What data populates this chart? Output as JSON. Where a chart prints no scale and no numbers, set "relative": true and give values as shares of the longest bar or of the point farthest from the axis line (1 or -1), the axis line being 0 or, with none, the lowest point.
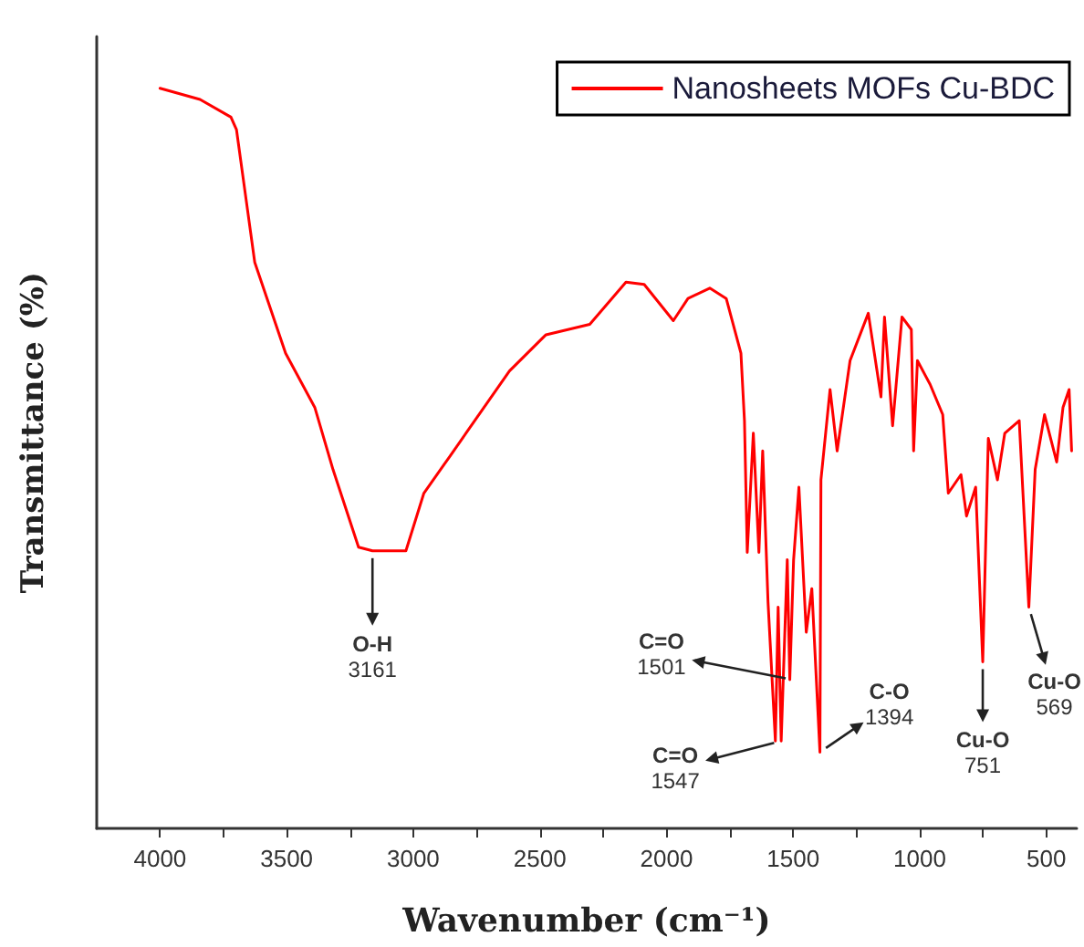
{
  "chart_data": {
    "type": "line",
    "relative": true,
    "xlabel": "Wavenumber (cm⁻¹)",
    "ylabel": "Transmittance (%)",
    "xlim": [
      4250,
      380
    ],
    "xticks": [
      4000,
      {
        "value": 3750,
        "label": null
      },
      3500,
      {
        "value": 3250,
        "label": null
      },
      3000,
      {
        "value": 2750,
        "label": null
      },
      2500,
      {
        "value": 2250,
        "label": null
      },
      2000,
      {
        "value": 1750,
        "label": null
      },
      1500,
      {
        "value": 1250,
        "label": null
      },
      1000,
      {
        "value": 750,
        "label": null
      },
      500
    ],
    "legend": "top right",
    "grid": false,
    "marker": "none",
    "line_style": "solid",
    "series": [
      {
        "name": "Nanosheets MOFs Cu-BDC",
        "color": "#ff0000",
        "x": [
          4000,
          3842,
          3720,
          3698,
          3626,
          3504,
          3389,
          3317,
          3216,
          3161,
          3123,
          3029,
          2958,
          2857,
          2620,
          2476,
          2303,
          2160,
          2088,
          1973,
          1915,
          1829,
          1764,
          1706,
          1692,
          1681,
          1657,
          1635,
          1620,
          1599,
          1570,
          1559,
          1547,
          1523,
          1513,
          1498,
          1477,
          1448,
          1426,
          1394,
          1390,
          1354,
          1326,
          1275,
          1203,
          1153,
          1139,
          1107,
          1070,
          1033,
          1024,
          1009,
          959,
          909,
          887,
          837,
          815,
          779,
          751,
          729,
          693,
          664,
          607,
          569,
          544,
          507,
          459,
          434,
          410,
          400
        ],
        "values": [
          1.0,
          0.985,
          0.961,
          0.944,
          0.765,
          0.642,
          0.569,
          0.485,
          0.38,
          0.375,
          0.375,
          0.375,
          0.453,
          0.502,
          0.618,
          0.667,
          0.681,
          0.738,
          0.735,
          0.686,
          0.716,
          0.73,
          0.716,
          0.642,
          0.551,
          0.373,
          0.534,
          0.373,
          0.51,
          0.306,
          0.118,
          0.299,
          0.118,
          0.363,
          0.201,
          0.363,
          0.461,
          0.265,
          0.324,
          0.103,
          0.471,
          0.593,
          0.51,
          0.632,
          0.696,
          0.583,
          0.691,
          0.544,
          0.691,
          0.674,
          0.51,
          0.632,
          0.6,
          0.559,
          0.453,
          0.478,
          0.422,
          0.461,
          0.225,
          0.527,
          0.471,
          0.534,
          0.551,
          0.299,
          0.485,
          0.559,
          0.495,
          0.569,
          0.593,
          0.51
        ]
      }
    ],
    "annotations": [
      {
        "text": "O-H\n3161",
        "x": 3161,
        "y": 0.375
      },
      {
        "text": "C=O\n1501",
        "x": 1501,
        "y": 0.201
      },
      {
        "text": "C=O\n1547",
        "x": 1547,
        "y": 0.118
      },
      {
        "text": "C-O\n1394",
        "x": 1394,
        "y": 0.103
      },
      {
        "text": "Cu-O\n751",
        "x": 751,
        "y": 0.225
      },
      {
        "text": "Cu-O\n569",
        "x": 569,
        "y": 0.299
      }
    ]
  }
}
